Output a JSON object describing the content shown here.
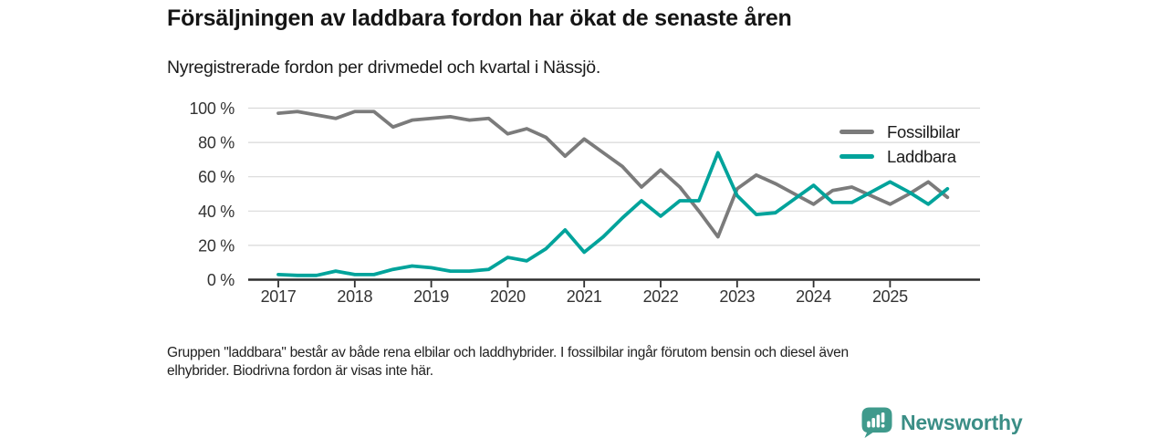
{
  "header": {
    "title": "Försäljningen av laddbara fordon har ökat de senaste åren",
    "subtitle": "Nyregistrerade fordon per drivmedel och kvartal i Nässjö."
  },
  "chart_data": {
    "type": "line",
    "x_axis": {
      "unit": "quarter",
      "start": "2017 Q1",
      "end": "2025 Q4",
      "year_labels": [
        "2017",
        "2018",
        "2019",
        "2020",
        "2021",
        "2022",
        "2023",
        "2024",
        "2025"
      ]
    },
    "y_axis": {
      "unit": "percent",
      "lim": [
        0,
        100
      ],
      "tick_values": [
        0,
        20,
        40,
        60,
        80,
        100
      ],
      "tick_labels": [
        "0 %",
        "20 %",
        "40 %",
        "60 %",
        "80 %",
        "100 %"
      ]
    },
    "grid": "horizontal",
    "legend_position": "top-right",
    "series": [
      {
        "name": "Fossilbilar",
        "color": "#7b7b7b",
        "values": [
          97,
          98,
          96,
          94,
          98,
          98,
          89,
          93,
          94,
          95,
          93,
          94,
          85,
          88,
          83,
          72,
          82,
          74,
          66,
          54,
          64,
          54,
          40,
          25,
          53,
          61,
          56,
          50,
          44,
          52,
          54,
          49,
          44,
          50,
          57,
          48
        ]
      },
      {
        "name": "Laddbara",
        "color": "#00a39b",
        "values": [
          3,
          2.5,
          2.5,
          5,
          3,
          3,
          6,
          8,
          7,
          5,
          5,
          6,
          13,
          11,
          18,
          29,
          16,
          25,
          36,
          46,
          37,
          46,
          46,
          74,
          49,
          38,
          39,
          47,
          55,
          45,
          45,
          51,
          57,
          51,
          44,
          53
        ]
      }
    ]
  },
  "footer": {
    "line1": "Gruppen \"laddbara\" består av både rena elbilar och laddhybrider. I fossilbilar ingår förutom bensin och diesel även",
    "line2": "elhybrider. Biodrivna fordon är visas inte här."
  },
  "logo": {
    "text": "Newsworthy",
    "badge_color": "#3f9a8c",
    "text_color": "#3b8e86"
  }
}
